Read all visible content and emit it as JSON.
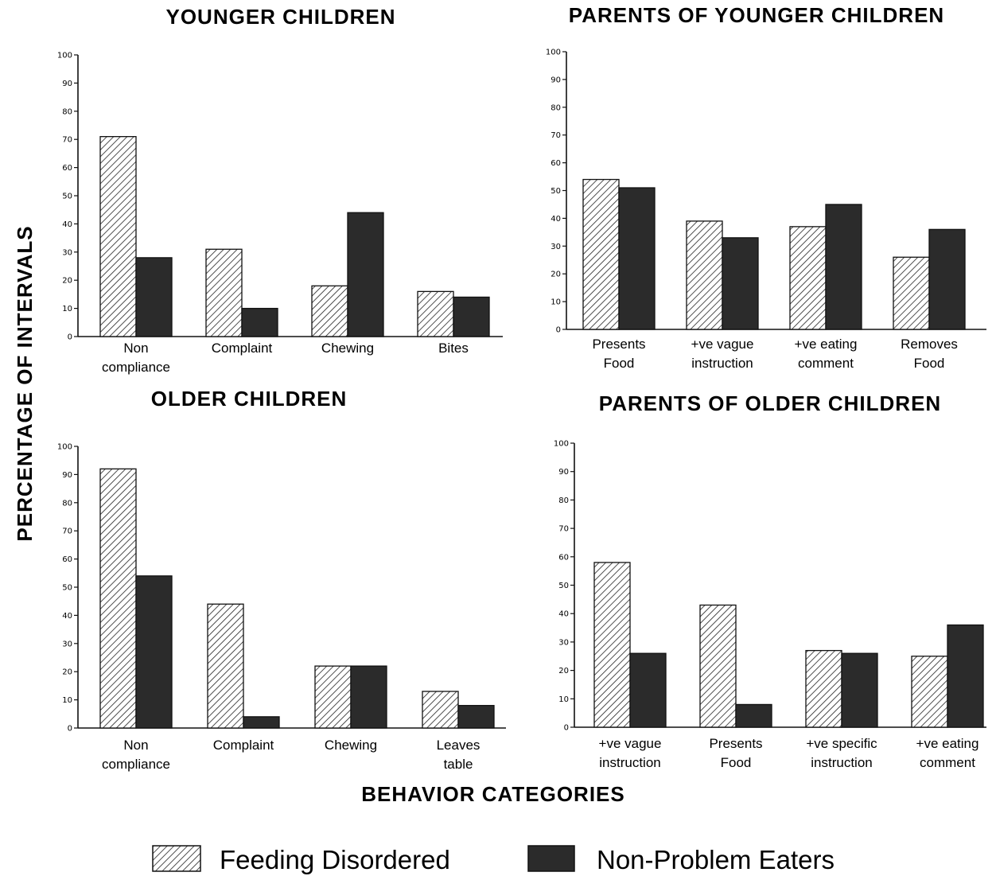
{
  "ylabel": "PERCENTAGE OF INTERVALS",
  "xlabel": "BEHAVIOR CATEGORIES",
  "legend": [
    {
      "name": "Feeding Disordered",
      "style": "hatched"
    },
    {
      "name": "Non-Problem Eaters",
      "style": "dark"
    }
  ],
  "colors": {
    "dark": "#2b2b2b",
    "outline": "#111111"
  },
  "chart_data": [
    {
      "type": "bar",
      "title": "YOUNGER CHILDREN",
      "categories": [
        [
          "Non",
          "compliance"
        ],
        [
          "Complaint"
        ],
        [
          "Chewing"
        ],
        [
          "Bites"
        ]
      ],
      "series": [
        {
          "name": "Feeding Disordered",
          "values": [
            71,
            31,
            18,
            16
          ]
        },
        {
          "name": "Non-Problem Eaters",
          "values": [
            28,
            10,
            44,
            14
          ]
        }
      ],
      "yticks": [
        0,
        10,
        20,
        30,
        40,
        50,
        60,
        70,
        80,
        90,
        100
      ],
      "ylim": [
        0,
        100
      ]
    },
    {
      "type": "bar",
      "title": "PARENTS OF YOUNGER CHILDREN",
      "categories": [
        [
          "Presents",
          "Food"
        ],
        [
          "+ve vague",
          "instruction"
        ],
        [
          "+ve eating",
          "comment"
        ],
        [
          "Removes",
          "Food"
        ]
      ],
      "series": [
        {
          "name": "Feeding Disordered",
          "values": [
            54,
            39,
            37,
            26
          ]
        },
        {
          "name": "Non-Problem Eaters",
          "values": [
            51,
            33,
            45,
            36
          ]
        }
      ],
      "yticks": [
        0,
        10,
        20,
        30,
        40,
        50,
        60,
        70,
        80,
        90,
        100
      ],
      "ylim": [
        0,
        100
      ]
    },
    {
      "type": "bar",
      "title": "OLDER CHILDREN",
      "categories": [
        [
          "Non",
          "compliance"
        ],
        [
          "Complaint"
        ],
        [
          "Chewing"
        ],
        [
          "Leaves",
          "table"
        ]
      ],
      "series": [
        {
          "name": "Feeding Disordered",
          "values": [
            92,
            44,
            22,
            13
          ]
        },
        {
          "name": "Non-Problem Eaters",
          "values": [
            54,
            4,
            22,
            8
          ]
        }
      ],
      "yticks": [
        0,
        10,
        20,
        30,
        40,
        50,
        60,
        70,
        80,
        90,
        100
      ],
      "ylim": [
        0,
        100
      ]
    },
    {
      "type": "bar",
      "title": "PARENTS OF OLDER CHILDREN",
      "categories": [
        [
          "+ve vague",
          "instruction"
        ],
        [
          "Presents",
          "Food"
        ],
        [
          "+ve specific",
          "instruction"
        ],
        [
          "+ve eating",
          "comment"
        ]
      ],
      "series": [
        {
          "name": "Feeding Disordered",
          "values": [
            58,
            43,
            27,
            25
          ]
        },
        {
          "name": "Non-Problem Eaters",
          "values": [
            26,
            8,
            26,
            36
          ]
        }
      ],
      "yticks": [
        0,
        10,
        20,
        30,
        40,
        50,
        60,
        70,
        80,
        90,
        100
      ],
      "ylim": [
        0,
        100
      ]
    }
  ]
}
